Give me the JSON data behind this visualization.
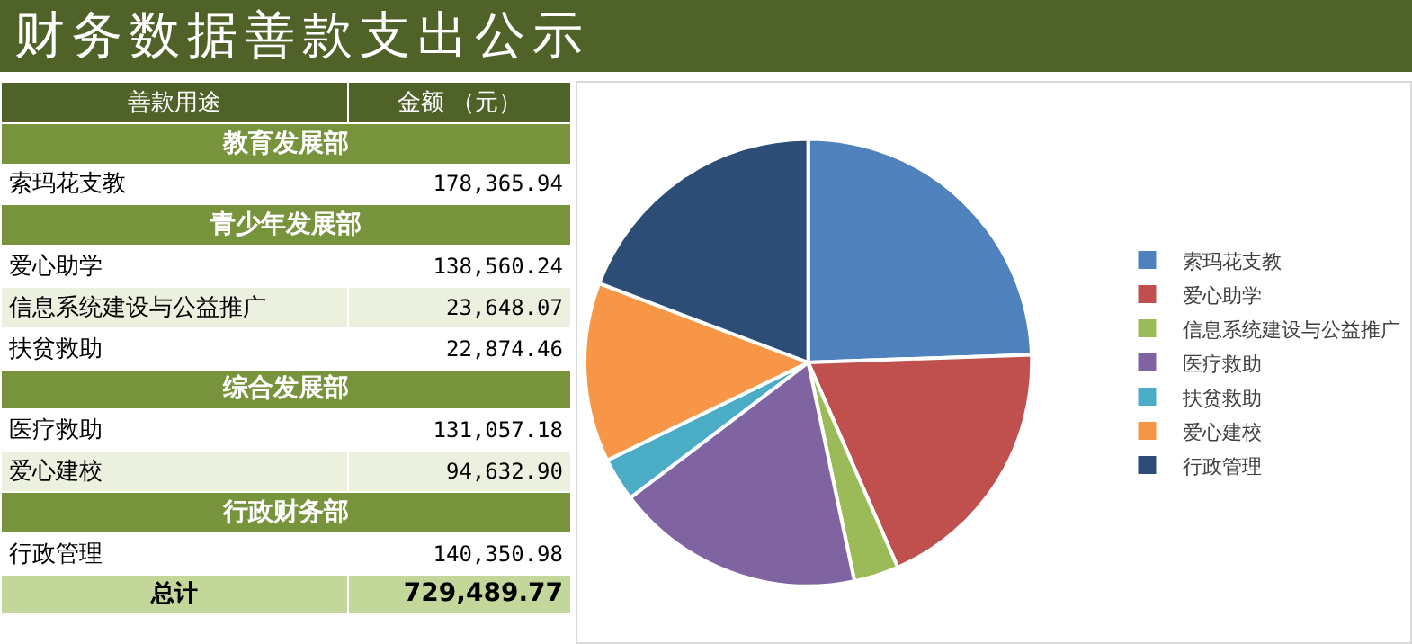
{
  "chart_data": [
    {
      "type": "other",
      "title": "财务数据善款支出公示",
      "annotations": [
        "善款用途",
        "金额 （元）",
        "教育发展部",
        "索玛花支教",
        "178,365.94",
        "青少年发展部",
        "爱心助学",
        "138,560.24",
        "信息系统建设与公益推广",
        "23,648.07",
        "扶贫救助",
        "22,874.46",
        "综合发展部",
        "医疗救助",
        "131,057.18",
        "爱心建校",
        "94,632.90",
        "行政财务部",
        "行政管理",
        "140,350.98",
        "总计",
        "729,489.77"
      ]
    },
    {
      "type": "pie",
      "categories": [
        "索玛花支教",
        "爱心助学",
        "信息系统建设与公益推广",
        "医疗救助",
        "扶贫救助",
        "爱心建校",
        "行政管理"
      ],
      "values": [
        24.45,
        18.99,
        3.24,
        17.97,
        3.14,
        12.97,
        19.24
      ],
      "colors": [
        "#4f81bd",
        "#c0504d",
        "#9bbb59",
        "#8064a2",
        "#4bacc6",
        "#f79646",
        "#2c4d75"
      ],
      "legend": "right"
    }
  ]
}
